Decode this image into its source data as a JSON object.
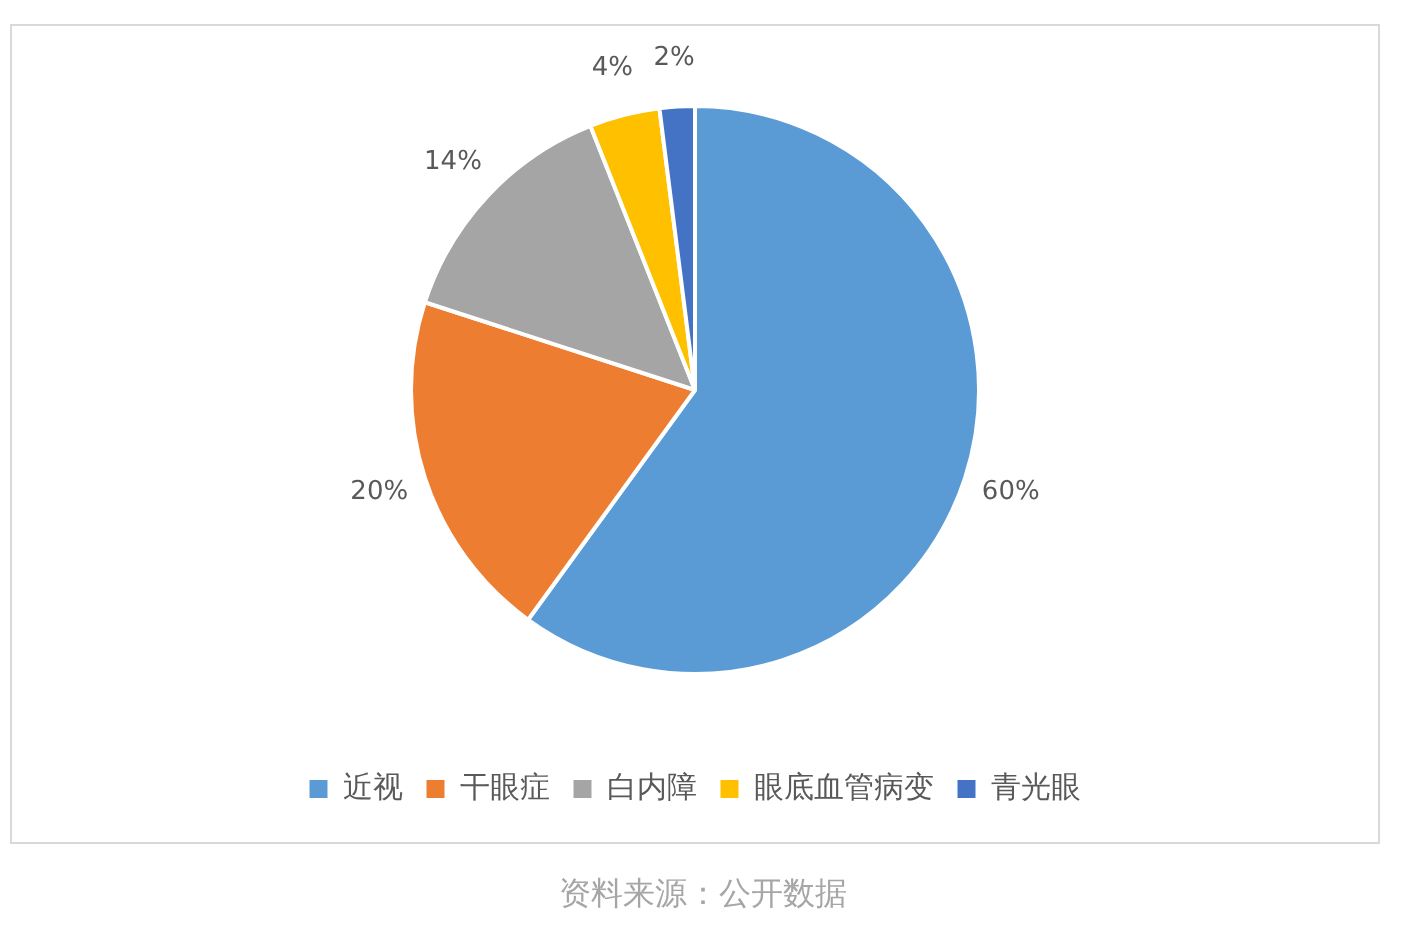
{
  "chart_data": {
    "type": "pie",
    "categories": [
      "近视",
      "干眼症",
      "白内障",
      "眼底血管病变",
      "青光眼"
    ],
    "values": [
      60,
      20,
      14,
      4,
      2
    ],
    "colors": [
      "#5b9bd5",
      "#ed7d31",
      "#a5a5a5",
      "#ffc000",
      "#4472c4"
    ],
    "value_labels": [
      "60%",
      "20%",
      "14%",
      "4%",
      "2%"
    ],
    "legend": "bottom",
    "annotations": [
      "资料来源：公开数据"
    ]
  }
}
